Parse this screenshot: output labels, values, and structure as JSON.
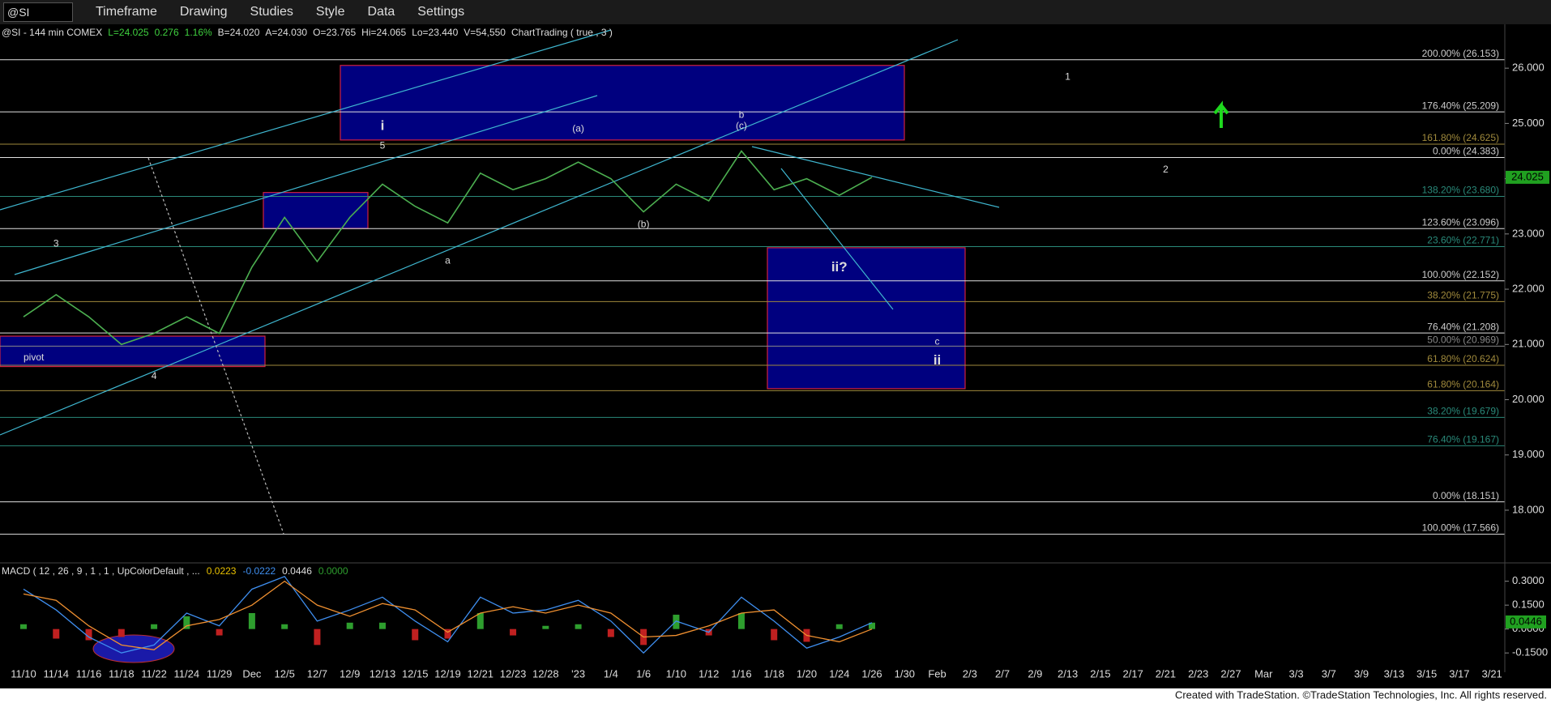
{
  "toolbar": {
    "symbol": "@SI",
    "items": [
      "Timeframe",
      "Drawing",
      "Studies",
      "Style",
      "Data",
      "Settings"
    ]
  },
  "info": {
    "name": "@SI - 144 min COMEX",
    "fields": [
      "L=24.025",
      "0.276",
      "1.16%",
      "B=24.020",
      "A=24.030",
      "O=23.765",
      "Hi=24.065",
      "Lo=23.440",
      "V=54,550"
    ],
    "study": "ChartTrading ( true , 3 )"
  },
  "chart_data": {
    "type": "line",
    "color": "#4caf50",
    "categories": [
      "11/10",
      "11/14",
      "11/16",
      "11/18",
      "11/22",
      "11/24",
      "11/29",
      "Dec",
      "12/5",
      "12/7",
      "12/9",
      "12/13",
      "12/15",
      "12/19",
      "12/21",
      "12/23",
      "12/28",
      "'23",
      "1/4",
      "1/6",
      "1/10",
      "1/12",
      "1/16",
      "1/18",
      "1/20",
      "1/24",
      "1/26",
      "1/30",
      "Feb",
      "2/3",
      "2/7",
      "2/9",
      "2/13",
      "2/15",
      "2/17",
      "2/21",
      "2/23",
      "2/27",
      "Mar",
      "3/3",
      "3/7",
      "3/9",
      "3/13",
      "3/15",
      "3/17",
      "3/21"
    ],
    "values": [
      21.5,
      21.9,
      21.5,
      21.0,
      21.2,
      21.5,
      21.2,
      22.4,
      23.3,
      22.5,
      23.3,
      23.9,
      23.5,
      23.2,
      24.1,
      23.8,
      24.0,
      24.3,
      24.0,
      23.4,
      23.9,
      23.6,
      24.5,
      23.8,
      24.0,
      23.7,
      24.025,
      null,
      null,
      null,
      null,
      null,
      null,
      null,
      null,
      null,
      null,
      null,
      null,
      null,
      null,
      null,
      null,
      null,
      null,
      null
    ],
    "last": 24.025,
    "ylim": [
      17.12,
      26.75
    ],
    "yticks": [
      {
        "value": 26,
        "label": "26.000"
      },
      {
        "value": 25,
        "label": "25.000"
      },
      {
        "value": 24,
        "label": "24.000"
      },
      {
        "value": 23,
        "label": "23.000"
      },
      {
        "value": 22,
        "label": "22.000"
      },
      {
        "value": 21,
        "label": "21.000"
      },
      {
        "value": 20,
        "label": "20.000"
      },
      {
        "value": 19,
        "label": "19.000"
      },
      {
        "value": 18,
        "label": "18.000"
      }
    ],
    "levels": [
      {
        "label": "200.00% (26.153)",
        "value": 26.153,
        "color": "#e0e0e0"
      },
      {
        "label": "176.40% (25.209)",
        "value": 25.209,
        "color": "#e0e0e0"
      },
      {
        "label": "161.80% (24.625)",
        "value": 24.625,
        "color": "#a08a3c"
      },
      {
        "label": "0.00% (24.383)",
        "value": 24.383,
        "color": "#e0e0e0"
      },
      {
        "label": "138.20% (23.680)",
        "value": 23.68,
        "color": "#2a8a7a"
      },
      {
        "label": "123.60% (23.096)",
        "value": 23.096,
        "color": "#e0e0e0"
      },
      {
        "label": "23.60% (22.771)",
        "value": 22.771,
        "color": "#2a8a7a"
      },
      {
        "label": "100.00% (22.152)",
        "value": 22.152,
        "color": "#e0e0e0"
      },
      {
        "label": "38.20% (21.775)",
        "value": 21.775,
        "color": "#a08a3c"
      },
      {
        "label": "76.40% (21.208)",
        "value": 21.208,
        "color": "#e0e0e0"
      },
      {
        "label": "50.00% (20.969)",
        "value": 20.969,
        "color": "#888888"
      },
      {
        "label": "61.80% (20.624)",
        "value": 20.624,
        "color": "#a08a3c"
      },
      {
        "label": "61.80% (20.164)",
        "value": 20.164,
        "color": "#a08a3c"
      },
      {
        "label": "38.20% (19.679)",
        "value": 19.679,
        "color": "#2a8a7a"
      },
      {
        "label": "76.40% (19.167)",
        "value": 19.167,
        "color": "#2a8a7a"
      },
      {
        "label": "0.00% (18.151)",
        "value": 18.151,
        "color": "#e0e0e0"
      },
      {
        "label": "100.00% (17.566)",
        "value": 17.566,
        "color": "#e0e0e0"
      }
    ],
    "zones": [
      {
        "low": 24.7,
        "high": 26.05
      },
      {
        "low": 23.1,
        "high": 23.75
      },
      {
        "low": 20.6,
        "high": 21.15
      },
      {
        "low": 20.2,
        "high": 22.75
      }
    ],
    "annotations": [
      {
        "text": "i",
        "x": "12/13",
        "price": 24.95
      },
      {
        "text": "5",
        "x": "12/13",
        "price": 24.59
      },
      {
        "text": "3",
        "x": "11/14",
        "price": 22.82
      },
      {
        "text": "4",
        "x": "11/22",
        "price": 20.42
      },
      {
        "text": "a",
        "x": "12/19",
        "price": 22.51
      },
      {
        "text": "(a)",
        "x": "'23",
        "price": 24.9
      },
      {
        "text": "(b)",
        "x": "1/6",
        "price": 23.17
      },
      {
        "text": "b",
        "x": "1/16",
        "price": 25.15
      },
      {
        "text": "(c)",
        "x": "1/16",
        "price": 24.95
      },
      {
        "text": "ii?",
        "x": "1/24",
        "price": 22.39
      },
      {
        "text": "c",
        "x": "Feb",
        "price": 21.04
      },
      {
        "text": "ii",
        "x": "Feb",
        "price": 20.7
      },
      {
        "text": "1",
        "x": "2/13",
        "price": 25.84
      },
      {
        "text": "2",
        "x": "2/21",
        "price": 24.16
      },
      {
        "text": "pivot",
        "x": "11/10",
        "price": 20.76
      }
    ]
  },
  "macd": {
    "label": "MACD ( 12 , 26 , 9 , 1 , 1 , UpColorDefault , ...",
    "readings": [
      "0.0223",
      "-0.0222",
      "0.0446",
      "0.0000"
    ],
    "last": 0.0446,
    "up_color": "#2e9e2e",
    "down_color": "#c02020",
    "ylim": [
      -0.21,
      0.41
    ],
    "yticks": [
      {
        "value": 0.3,
        "label": "0.3000"
      },
      {
        "value": 0.15,
        "label": "0.1500"
      },
      {
        "value": 0,
        "label": "0.0000"
      },
      {
        "value": -0.15,
        "label": "-0.1500"
      }
    ],
    "series": [
      {
        "name": "MACD",
        "color": "#3f8ff0",
        "values": [
          0.25,
          0.12,
          -0.05,
          -0.15,
          -0.1,
          0.1,
          0.02,
          0.25,
          0.33,
          0.05,
          0.12,
          0.2,
          0.05,
          -0.08,
          0.2,
          0.1,
          0.12,
          0.18,
          0.05,
          -0.15,
          0.05,
          -0.02,
          0.2,
          0.05,
          -0.12,
          -0.05,
          0.04,
          null,
          null,
          null,
          null,
          null,
          null,
          null,
          null,
          null,
          null,
          null,
          null,
          null,
          null,
          null,
          null,
          null,
          null,
          null
        ]
      },
      {
        "name": "MACDAvg",
        "color": "#f09030",
        "values": [
          0.22,
          0.18,
          0.02,
          -0.1,
          -0.13,
          0.02,
          0.06,
          0.15,
          0.3,
          0.15,
          0.08,
          0.16,
          0.12,
          -0.02,
          0.1,
          0.14,
          0.1,
          0.15,
          0.1,
          -0.05,
          -0.04,
          0.02,
          0.1,
          0.12,
          -0.04,
          -0.08,
          0.0,
          null,
          null,
          null,
          null,
          null,
          null,
          null,
          null,
          null,
          null,
          null,
          null,
          null,
          null,
          null,
          null,
          null,
          null,
          null
        ]
      },
      {
        "name": "MACDDiff",
        "values": [
          0.03,
          -0.06,
          -0.07,
          -0.05,
          0.03,
          0.08,
          -0.04,
          0.1,
          0.03,
          -0.1,
          0.04,
          0.04,
          -0.07,
          -0.06,
          0.1,
          -0.04,
          0.02,
          0.03,
          -0.05,
          -0.1,
          0.09,
          -0.04,
          0.1,
          -0.07,
          -0.08,
          0.03,
          0.04,
          null,
          null,
          null,
          null,
          null,
          null,
          null,
          null,
          null,
          null,
          null,
          null,
          null,
          null,
          null,
          null,
          null,
          null,
          null
        ]
      }
    ]
  },
  "footer": "Created with TradeStation. ©TradeStation Technologies, Inc. All rights reserved."
}
